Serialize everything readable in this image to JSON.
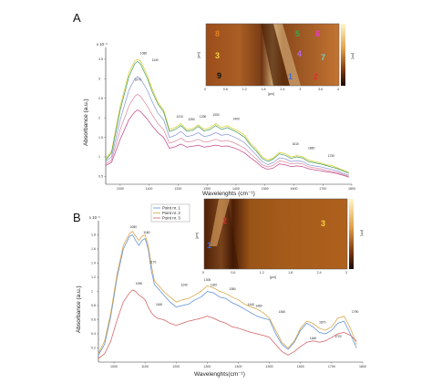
{
  "chart_data": [
    {
      "id": "A",
      "type": "line",
      "panel_label": "A",
      "xlabel": "Wavelenghts (cm⁻¹)",
      "ylabel": "Absorbance (a.u.)",
      "scale_note": "x 10⁻³",
      "x_ticks": [
        "1000",
        "1100",
        "1200",
        "1300",
        "1400",
        "1500",
        "1600",
        "1700",
        "1800"
      ],
      "y_ticks": [
        "0.5",
        "1",
        "1.5",
        "2",
        "2.5",
        "3",
        "3.5"
      ],
      "xlim": [
        950,
        1800
      ],
      "ylim": [
        0.3,
        3.8
      ],
      "x": [
        950,
        970,
        1000,
        1030,
        1050,
        1060,
        1070,
        1080,
        1095,
        1110,
        1130,
        1150,
        1170,
        1190,
        1210,
        1230,
        1250,
        1270,
        1290,
        1310,
        1330,
        1350,
        1370,
        1390,
        1410,
        1430,
        1450,
        1470,
        1490,
        1510,
        1530,
        1550,
        1570,
        1590,
        1610,
        1630,
        1650,
        1670,
        1690,
        1710,
        1730,
        1750,
        1770,
        1790
      ],
      "series": [
        {
          "color": "#d7cf2e",
          "values": [
            0.95,
            1.15,
            2.3,
            3.15,
            3.45,
            3.5,
            3.45,
            3.3,
            3.05,
            2.75,
            2.4,
            2.2,
            1.7,
            1.75,
            1.85,
            1.7,
            1.72,
            1.82,
            1.7,
            1.75,
            1.85,
            1.75,
            1.8,
            1.72,
            1.65,
            1.55,
            1.35,
            1.2,
            1.0,
            0.92,
            0.98,
            1.12,
            1.08,
            1.0,
            1.03,
            1.0,
            0.92,
            0.88,
            0.85,
            0.8,
            0.78,
            0.72,
            0.66,
            0.6
          ]
        },
        {
          "color": "#4c9f6a",
          "values": [
            0.92,
            1.1,
            2.2,
            3.05,
            3.38,
            3.44,
            3.38,
            3.22,
            2.98,
            2.68,
            2.35,
            2.15,
            1.65,
            1.7,
            1.8,
            1.66,
            1.68,
            1.78,
            1.66,
            1.7,
            1.8,
            1.7,
            1.75,
            1.68,
            1.6,
            1.5,
            1.3,
            1.15,
            0.96,
            0.88,
            0.95,
            1.08,
            1.04,
            0.96,
            1.0,
            0.97,
            0.88,
            0.85,
            0.82,
            0.78,
            0.74,
            0.7,
            0.64,
            0.58
          ]
        },
        {
          "color": "#8c9ad6",
          "values": [
            0.88,
            1.0,
            1.95,
            2.7,
            3.0,
            3.05,
            3.0,
            2.88,
            2.68,
            2.42,
            2.12,
            1.95,
            1.5,
            1.55,
            1.65,
            1.52,
            1.55,
            1.62,
            1.52,
            1.55,
            1.62,
            1.55,
            1.58,
            1.52,
            1.45,
            1.36,
            1.2,
            1.05,
            0.88,
            0.8,
            0.86,
            0.98,
            0.95,
            0.88,
            0.9,
            0.88,
            0.8,
            0.77,
            0.75,
            0.71,
            0.68,
            0.64,
            0.58,
            0.53
          ]
        },
        {
          "color": "#e08aa0",
          "values": [
            0.82,
            0.92,
            1.7,
            2.3,
            2.55,
            2.6,
            2.55,
            2.45,
            2.28,
            2.08,
            1.85,
            1.7,
            1.35,
            1.4,
            1.48,
            1.38,
            1.4,
            1.45,
            1.38,
            1.4,
            1.45,
            1.4,
            1.42,
            1.37,
            1.3,
            1.22,
            1.08,
            0.95,
            0.8,
            0.74,
            0.79,
            0.9,
            0.87,
            0.82,
            0.84,
            0.82,
            0.75,
            0.72,
            0.7,
            0.66,
            0.63,
            0.6,
            0.55,
            0.5
          ]
        },
        {
          "color": "#c44a8a",
          "values": [
            0.78,
            0.86,
            1.45,
            1.95,
            2.15,
            2.2,
            2.16,
            2.08,
            1.95,
            1.8,
            1.62,
            1.5,
            1.22,
            1.26,
            1.33,
            1.25,
            1.27,
            1.3,
            1.25,
            1.27,
            1.3,
            1.27,
            1.28,
            1.24,
            1.18,
            1.1,
            0.98,
            0.87,
            0.74,
            0.68,
            0.72,
            0.82,
            0.8,
            0.75,
            0.77,
            0.75,
            0.7,
            0.67,
            0.65,
            0.62,
            0.6,
            0.57,
            0.53,
            0.48
          ]
        }
      ],
      "peak_labels": [
        {
          "text": "1080",
          "x": 1080,
          "y": 3.62
        },
        {
          "text": "1140",
          "x": 1120,
          "y": 3.45
        },
        {
          "text": "1070",
          "x": 1060,
          "y": 2.95
        },
        {
          "text": "1210",
          "x": 1205,
          "y": 2.0
        },
        {
          "text": "1250",
          "x": 1245,
          "y": 1.93
        },
        {
          "text": "1290",
          "x": 1285,
          "y": 2.0
        },
        {
          "text": "1330",
          "x": 1330,
          "y": 2.05
        },
        {
          "text": "1400",
          "x": 1400,
          "y": 1.95
        },
        {
          "text": "1610",
          "x": 1605,
          "y": 1.3
        },
        {
          "text": "1660",
          "x": 1660,
          "y": 1.2
        },
        {
          "text": "1730",
          "x": 1728,
          "y": 1.0
        }
      ],
      "inset": {
        "x_ticks": [
          "0",
          "0.6",
          "1.2",
          "1.8",
          "2.4",
          "3",
          "3.6",
          "4"
        ],
        "x_unit": "[µm]",
        "y_unit": "[µm]",
        "colorbar_label": "[nm]",
        "markers": [
          {
            "text": "8",
            "color": "#e67e22"
          },
          {
            "text": "3",
            "color": "#f5d142"
          },
          {
            "text": "9",
            "color": "#111111"
          },
          {
            "text": "5",
            "color": "#3ea34b"
          },
          {
            "text": "6",
            "color": "#ec3bc5"
          },
          {
            "text": "4",
            "color": "#b566e0"
          },
          {
            "text": "7",
            "color": "#6fd3c8"
          },
          {
            "text": "1",
            "color": "#3d6bd6"
          },
          {
            "text": "2",
            "color": "#e03030"
          }
        ]
      }
    },
    {
      "id": "B",
      "type": "line",
      "panel_label": "B",
      "xlabel": "Wavelenghts(cm⁻¹)",
      "ylabel": "Absorbance (a.u.)",
      "scale_note": "x 10⁻³",
      "x_ticks": [
        "1000",
        "1100",
        "1200",
        "1300",
        "1400",
        "1500",
        "1600",
        "1700",
        "1800"
      ],
      "y_ticks": [
        "0.2",
        "0.4",
        "0.6",
        "0.8",
        "1",
        "1.2",
        "1.4",
        "1.6",
        "1.8"
      ],
      "xlim": [
        950,
        1800
      ],
      "ylim": [
        0.0,
        2.0
      ],
      "legend": [
        "Point nr. 1",
        "Point nr. 2",
        "Point nr. 3"
      ],
      "x": [
        950,
        970,
        990,
        1010,
        1030,
        1050,
        1060,
        1070,
        1080,
        1090,
        1100,
        1110,
        1120,
        1130,
        1140,
        1160,
        1180,
        1200,
        1220,
        1240,
        1260,
        1280,
        1300,
        1320,
        1340,
        1360,
        1380,
        1400,
        1420,
        1440,
        1460,
        1480,
        1500,
        1520,
        1540,
        1560,
        1580,
        1600,
        1620,
        1640,
        1660,
        1680,
        1700,
        1720,
        1740,
        1760,
        1780
      ],
      "series": [
        {
          "name": "Point nr. 1",
          "color": "#5a8ed6",
          "values": [
            0.1,
            0.25,
            0.65,
            1.2,
            1.6,
            1.78,
            1.8,
            1.72,
            1.65,
            1.72,
            1.75,
            1.6,
            1.3,
            1.1,
            1.05,
            0.95,
            0.85,
            0.78,
            0.8,
            0.82,
            0.88,
            0.92,
            1.0,
            0.98,
            0.92,
            0.9,
            0.84,
            0.8,
            0.75,
            0.7,
            0.65,
            0.62,
            0.6,
            0.4,
            0.25,
            0.18,
            0.28,
            0.45,
            0.55,
            0.5,
            0.42,
            0.4,
            0.45,
            0.55,
            0.58,
            0.4,
            0.2
          ]
        },
        {
          "name": "Point nr. 2",
          "color": "#d9a441",
          "values": [
            0.12,
            0.3,
            0.7,
            1.25,
            1.65,
            1.82,
            1.85,
            1.78,
            1.72,
            1.78,
            1.8,
            1.65,
            1.38,
            1.15,
            1.1,
            1.0,
            0.92,
            0.85,
            0.88,
            0.9,
            0.95,
            1.0,
            1.08,
            1.05,
            1.0,
            0.97,
            0.92,
            0.88,
            0.82,
            0.78,
            0.75,
            0.7,
            0.62,
            0.45,
            0.28,
            0.2,
            0.3,
            0.48,
            0.58,
            0.55,
            0.48,
            0.45,
            0.5,
            0.62,
            0.65,
            0.48,
            0.25
          ]
        },
        {
          "name": "Point nr. 3",
          "color": "#d06060",
          "values": [
            0.05,
            0.12,
            0.3,
            0.6,
            0.85,
            0.98,
            1.02,
            1.0,
            0.95,
            0.92,
            0.88,
            0.78,
            0.7,
            0.65,
            0.62,
            0.6,
            0.55,
            0.52,
            0.55,
            0.58,
            0.6,
            0.62,
            0.65,
            0.62,
            0.58,
            0.55,
            0.5,
            0.48,
            0.45,
            0.42,
            0.4,
            0.38,
            0.35,
            0.25,
            0.15,
            0.1,
            0.15,
            0.22,
            0.28,
            0.3,
            0.28,
            0.3,
            0.35,
            0.4,
            0.42,
            0.38,
            0.3
          ]
        }
      ],
      "peak_labels": [
        {
          "text": "1080",
          "x": 1062,
          "y": 1.9
        },
        {
          "text": "1160",
          "x": 1105,
          "y": 1.82
        },
        {
          "text": "1170",
          "x": 1125,
          "y": 1.4
        },
        {
          "text": "1240",
          "x": 1225,
          "y": 1.08
        },
        {
          "text": "1300",
          "x": 1300,
          "y": 1.15
        },
        {
          "text": "1320",
          "x": 1320,
          "y": 1.08
        },
        {
          "text": "1380",
          "x": 1380,
          "y": 1.02
        },
        {
          "text": "1440",
          "x": 1440,
          "y": 0.8
        },
        {
          "text": "1460",
          "x": 1465,
          "y": 0.78
        },
        {
          "text": "1540",
          "x": 1540,
          "y": 0.7
        },
        {
          "text": "1670",
          "x": 1670,
          "y": 0.55
        },
        {
          "text": "1790",
          "x": 1775,
          "y": 0.7
        },
        {
          "text": "1640",
          "x": 1640,
          "y": 0.32
        },
        {
          "text": "1720",
          "x": 1720,
          "y": 0.35
        },
        {
          "text": "1090",
          "x": 1080,
          "y": 1.1
        },
        {
          "text": "1160",
          "x": 1145,
          "y": 0.8
        }
      ],
      "inset": {
        "x_ticks": [
          "0",
          "0.6",
          "1.2",
          "1.8",
          "2.4",
          "3"
        ],
        "x_unit": "[µm]",
        "y_unit": "[µm]",
        "colorbar_label": "[nm]",
        "markers": [
          {
            "text": "1",
            "color": "#3d6bd6"
          },
          {
            "text": "2",
            "color": "#e03030"
          },
          {
            "text": "3",
            "color": "#f5d142"
          }
        ]
      }
    }
  ]
}
